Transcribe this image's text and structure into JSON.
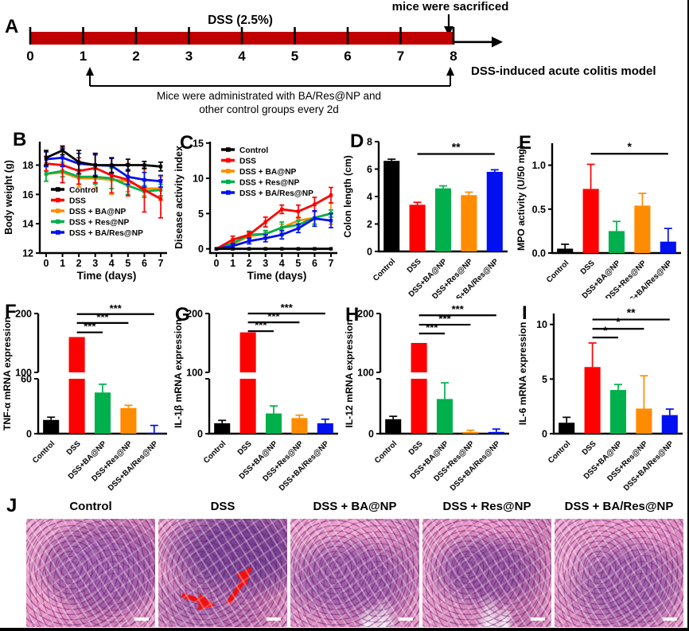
{
  "panels": {
    "A": {
      "letter": "A"
    },
    "B": {
      "letter": "B"
    },
    "C": {
      "letter": "C"
    },
    "D": {
      "letter": "D"
    },
    "E": {
      "letter": "E"
    },
    "F": {
      "letter": "F"
    },
    "G": {
      "letter": "G"
    },
    "H": {
      "letter": "H"
    },
    "I": {
      "letter": "I"
    },
    "J": {
      "letter": "J"
    }
  },
  "panelA": {
    "letter": "A",
    "top_right_label": "mice were sacrificed",
    "bar_label": "DSS (2.5%)",
    "model_label": "DSS-induced acute colitis model",
    "note_line1": "Mice were administrated with BA/Res@NP and",
    "note_line2": "other control groups every 2d",
    "day_labels": [
      "0",
      "1",
      "2",
      "3",
      "4",
      "5",
      "6",
      "7",
      "8"
    ],
    "bar_color": "#c00000"
  },
  "bar_categories": [
    "Control",
    "DSS",
    "DSS+BA@NP",
    "DSS+Res@NP",
    "DSS+BA/Res@NP"
  ],
  "bar_colors": [
    "#000000",
    "#ff0000",
    "#00b04c",
    "#ff8c00",
    "#0010ee"
  ],
  "histology": {
    "labels": [
      "Control",
      "DSS",
      "DSS + BA@NP",
      "DSS + Res@NP",
      "DSS + BA/Res@NP"
    ],
    "dss_arrow_color": "#ee1111"
  },
  "chart_data": [
    {
      "id": "B",
      "type": "line",
      "title": "",
      "ylabel": "Body weight (g)",
      "xlabel": "Time (days)",
      "ylim": [
        12,
        19.6
      ],
      "yticks": [
        12,
        14,
        16,
        18
      ],
      "x": [
        0,
        1,
        2,
        3,
        4,
        5,
        6,
        7
      ],
      "legend_position": "bottom-left",
      "series": [
        {
          "name": "Control",
          "color": "#000000",
          "values": [
            18.5,
            19.0,
            18.2,
            18.0,
            18.0,
            18.0,
            18.0,
            17.9
          ],
          "errors": [
            0.5,
            0.3,
            0.8,
            0.8,
            0.5,
            0.4,
            0.25,
            0.3
          ]
        },
        {
          "name": "DSS",
          "color": "#ff0000",
          "values": [
            18.1,
            18.0,
            17.6,
            17.8,
            17.3,
            17.0,
            16.3,
            15.7
          ],
          "errors": [
            0.5,
            1.2,
            0.9,
            1.0,
            1.2,
            1.1,
            1.5,
            1.3
          ]
        },
        {
          "name": "DSS + BA@NP",
          "color": "#ff8c00",
          "values": [
            17.4,
            17.5,
            17.1,
            17.1,
            17.0,
            16.9,
            16.4,
            16.4
          ],
          "errors": [
            0.5,
            0.7,
            0.6,
            0.7,
            1.0,
            0.7,
            0.5,
            0.8
          ]
        },
        {
          "name": "DSS + Res@NP",
          "color": "#00b04c",
          "values": [
            17.4,
            17.6,
            17.2,
            17.2,
            17.1,
            16.6,
            16.2,
            16.3
          ],
          "errors": [
            0.5,
            0.4,
            0.5,
            0.5,
            0.7,
            0.6,
            0.4,
            0.4
          ]
        },
        {
          "name": "DSS + BA/Res@NP",
          "color": "#0010ee",
          "values": [
            18.4,
            18.5,
            18.1,
            18.0,
            17.95,
            17.2,
            17.0,
            16.9
          ],
          "errors": [
            0.5,
            0.6,
            0.7,
            0.7,
            0.5,
            0.5,
            0.5,
            0.4
          ]
        }
      ]
    },
    {
      "id": "C",
      "type": "line",
      "title": "",
      "ylabel": "Disease activity index",
      "xlabel": "Time (days)",
      "ylim": [
        -0.6,
        15.2
      ],
      "yticks": [
        0,
        5,
        10,
        15
      ],
      "x": [
        0,
        1,
        2,
        3,
        4,
        5,
        6,
        7
      ],
      "legend_position": "top-left",
      "series": [
        {
          "name": "Control",
          "color": "#000000",
          "values": [
            0,
            0,
            0,
            0,
            0,
            0,
            0,
            0
          ],
          "errors": [
            0,
            0,
            0,
            0,
            0,
            0,
            0,
            0
          ]
        },
        {
          "name": "DSS",
          "color": "#ff0000",
          "values": [
            0,
            1.3,
            2.0,
            3.8,
            5.6,
            5.3,
            6.3,
            7.6
          ],
          "errors": [
            0,
            0.5,
            0.4,
            0.7,
            0.6,
            0.9,
            1.0,
            1.1
          ]
        },
        {
          "name": "DSS + BA@NP",
          "color": "#ff8c00",
          "values": [
            0,
            0.7,
            1.8,
            2.1,
            3.0,
            4.0,
            4.4,
            5.0
          ],
          "errors": [
            0,
            0.3,
            0.4,
            0.4,
            0.5,
            0.5,
            0.9,
            1.5
          ]
        },
        {
          "name": "DSS + Res@NP",
          "color": "#00b04c",
          "values": [
            0,
            0.8,
            2.0,
            2.1,
            3.0,
            3.4,
            4.4,
            5.0
          ],
          "errors": [
            0,
            0.3,
            0.5,
            0.5,
            0.8,
            0.6,
            0.9,
            0.5
          ]
        },
        {
          "name": "DSS + BA/Res@NP",
          "color": "#0010ee",
          "values": [
            0,
            0.4,
            1.1,
            1.5,
            2.0,
            2.9,
            4.3,
            4.0
          ],
          "errors": [
            0,
            0.3,
            0.4,
            0.5,
            0.6,
            0.6,
            1.1,
            1.0
          ]
        }
      ]
    },
    {
      "id": "D",
      "type": "bar",
      "ylabel": "Colon length (cm)",
      "ylim": [
        0,
        8
      ],
      "yticks": [
        "0",
        "2",
        "4",
        "6",
        "8"
      ],
      "values": [
        6.6,
        3.4,
        4.6,
        4.1,
        5.8
      ],
      "errors": [
        0.12,
        0.18,
        0.18,
        0.22,
        0.15
      ],
      "significance": [
        {
          "from": 1,
          "to": 4,
          "label": "**",
          "y": 7.1
        }
      ]
    },
    {
      "id": "E",
      "type": "bar",
      "ylabel": "MPO activity (U/50 mg)",
      "ylim": [
        0,
        1.25
      ],
      "yticks": [
        "0.0",
        "0.5",
        "1.0"
      ],
      "values": [
        0.05,
        0.73,
        0.25,
        0.54,
        0.13
      ],
      "errors": [
        0.05,
        0.28,
        0.11,
        0.14,
        0.15
      ],
      "significance": [
        {
          "from": 1,
          "to": 4,
          "label": "*",
          "y": 1.13
        }
      ]
    },
    {
      "id": "F",
      "type": "bar-broken",
      "ylabel": "TNF-α mRNA expression",
      "upper_range": [
        100,
        200
      ],
      "upper_ticks": [
        "100",
        "200"
      ],
      "lower_max": 60,
      "lower_ticks": [
        "0",
        "60"
      ],
      "values": [
        15,
        160,
        45,
        28,
        1
      ],
      "errors": [
        3,
        0,
        9,
        3,
        8
      ],
      "significance": [
        {
          "from": 1,
          "to": 2,
          "label": "***",
          "y": 168
        },
        {
          "from": 1,
          "to": 3,
          "label": "***",
          "y": 184
        },
        {
          "from": 1,
          "to": 4,
          "label": "***",
          "y": 199
        }
      ]
    },
    {
      "id": "G",
      "type": "bar-broken",
      "ylabel": "IL-1β mRNA expression",
      "upper_range": [
        100,
        200
      ],
      "upper_ticks": [
        "100",
        "200"
      ],
      "lower_max": 95,
      "lower_ticks": [
        "0"
      ],
      "values": [
        18,
        168,
        35,
        27,
        18
      ],
      "errors": [
        5,
        0,
        13,
        5,
        7
      ],
      "significance": [
        {
          "from": 1,
          "to": 2,
          "label": "***",
          "y": 170
        },
        {
          "from": 1,
          "to": 3,
          "label": "***",
          "y": 185
        },
        {
          "from": 1,
          "to": 4,
          "label": "***",
          "y": 200
        }
      ]
    },
    {
      "id": "H",
      "type": "bar-broken",
      "ylabel": "IL-12 mRNA expression",
      "upper_range": [
        100,
        200
      ],
      "upper_ticks": [
        "100",
        "200"
      ],
      "lower_max": 95,
      "lower_ticks": [
        "0"
      ],
      "values": [
        25,
        150,
        60,
        3,
        3
      ],
      "errors": [
        5,
        0,
        28,
        3,
        5
      ],
      "significance": [
        {
          "from": 1,
          "to": 2,
          "label": "***",
          "y": 166
        },
        {
          "from": 1,
          "to": 3,
          "label": "***",
          "y": 181
        },
        {
          "from": 1,
          "to": 4,
          "label": "***",
          "y": 197
        }
      ]
    },
    {
      "id": "I",
      "type": "bar",
      "ylabel": "IL-6 mRNA expression",
      "ylim": [
        0,
        11
      ],
      "yticks": [
        "0",
        "5",
        "10"
      ],
      "values": [
        1.0,
        6.1,
        4.0,
        2.3,
        1.7
      ],
      "errors": [
        0.5,
        2.2,
        0.5,
        3.0,
        0.55
      ],
      "significance": [
        {
          "from": 1,
          "to": 2,
          "label": "*",
          "y": 8.8
        },
        {
          "from": 1,
          "to": 3,
          "label": "*",
          "y": 9.6
        },
        {
          "from": 1,
          "to": 4,
          "label": "**",
          "y": 10.45
        }
      ]
    }
  ]
}
